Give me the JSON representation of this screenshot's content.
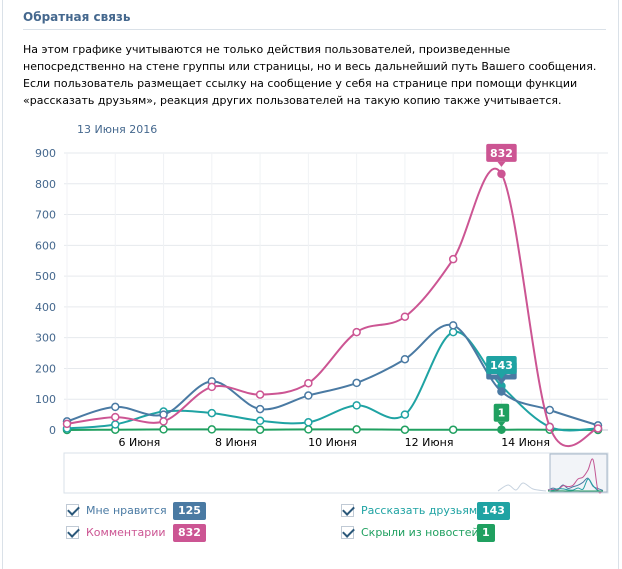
{
  "header": {
    "title": "Обратная связь",
    "description": "На этом графике учитываются не только действия пользователей, произведенные непосредственно на стене группы или страницы, но и весь дальнейший путь Вашего сообщения. Если пользователь размещает ссылку на сообщение у себя на странице при помощи функции «рассказать друзьям», реакция других пользователей на такую копию также учитывается."
  },
  "selected_date": "13 Июня 2016",
  "chart_data": {
    "type": "line",
    "x_ticks": [
      "6 Июня",
      "8 Июня",
      "10 Июня",
      "12 Июня",
      "14 Июня"
    ],
    "y_ticks": [
      0,
      100,
      200,
      300,
      400,
      500,
      600,
      700,
      800,
      900
    ],
    "ylim": [
      0,
      900
    ],
    "grid": true,
    "selected_index": 9,
    "series": [
      {
        "name": "Мне нравится",
        "color": "#4a7aa3",
        "values": [
          28,
          75,
          50,
          158,
          68,
          112,
          153,
          230,
          340,
          125,
          65,
          15
        ],
        "badge": "125"
      },
      {
        "name": "Комментарии",
        "color": "#cc5593",
        "values": [
          20,
          42,
          28,
          140,
          115,
          152,
          318,
          368,
          555,
          832,
          10,
          5
        ],
        "badge": "832"
      },
      {
        "name": "Рассказать друзьям",
        "color": "#1fa3a3",
        "values": [
          5,
          18,
          60,
          55,
          30,
          25,
          80,
          50,
          318,
          143,
          10,
          5
        ],
        "badge": "143"
      },
      {
        "name": "Скрыли из новостей",
        "color": "#20a060",
        "values": [
          0,
          1,
          2,
          2,
          1,
          2,
          2,
          1,
          1,
          1,
          1,
          0
        ],
        "badge": "1"
      }
    ]
  }
}
